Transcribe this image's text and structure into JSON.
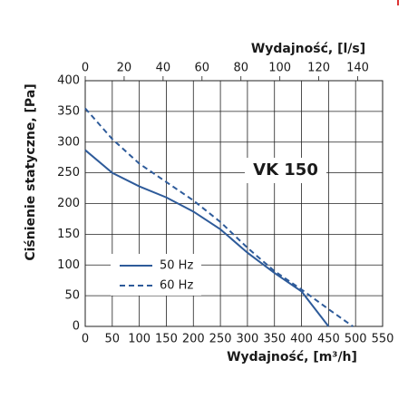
{
  "chart_data": {
    "type": "line",
    "annotation": "VK 150",
    "xlabel": "Wydajność, [m³/h]",
    "x2label": "Wydajność, [l/s]",
    "ylabel": "Ciśnienie statyczne, [Pa]",
    "xlim": [
      0,
      550
    ],
    "xticks": [
      0,
      50,
      100,
      150,
      200,
      250,
      300,
      350,
      400,
      450,
      500,
      550
    ],
    "x2lim": [
      0,
      152.8
    ],
    "x2ticks": [
      0,
      20,
      40,
      60,
      80,
      100,
      120,
      140
    ],
    "ylim": [
      0,
      400
    ],
    "yticks": [
      0,
      50,
      100,
      150,
      200,
      250,
      300,
      350,
      400
    ],
    "grid": true,
    "legend": "lower left",
    "series": [
      {
        "name": "50 Hz",
        "color": "#2e5b9a",
        "dash": false,
        "x": [
          0,
          50,
          100,
          150,
          200,
          250,
          300,
          350,
          400,
          450
        ],
        "values": [
          287,
          250,
          228,
          210,
          187,
          158,
          120,
          87,
          57,
          0
        ]
      },
      {
        "name": "60 Hz",
        "color": "#2e5b9a",
        "dash": true,
        "x": [
          0,
          50,
          100,
          150,
          200,
          250,
          300,
          350,
          400,
          450,
          495
        ],
        "values": [
          355,
          305,
          265,
          235,
          205,
          170,
          128,
          90,
          60,
          28,
          0
        ]
      }
    ]
  }
}
